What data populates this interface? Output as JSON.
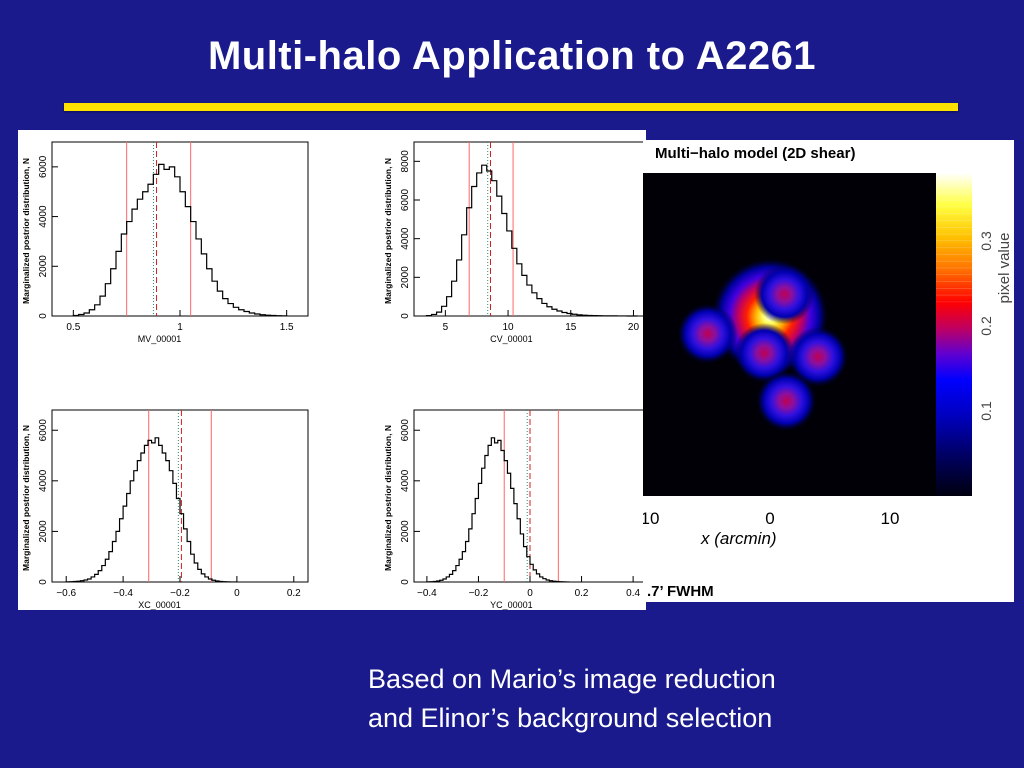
{
  "slide": {
    "title": "Multi-halo Application to A2261",
    "caption_line1": "Based on Mario’s image reduction",
    "caption_line2": "and Elinor’s  background selection",
    "colors": {
      "background": "#1a1a8c",
      "rule": "#ffe100",
      "title": "#ffffff"
    }
  },
  "chart_data": [
    {
      "type": "histogram",
      "xlabel": "MV_00001",
      "ylabel": "Marginalized postrior distribution, N",
      "xticks": [
        "0.5",
        "1",
        "1.5"
      ],
      "yticks": [
        "0",
        "2000",
        "4000",
        "6000"
      ],
      "xlim": [
        0.4,
        1.6
      ],
      "ylim": [
        0,
        7000
      ],
      "vlines_red": [
        0.75,
        1.05
      ],
      "vline_center": 0.89,
      "hist": {
        "start": 0.5,
        "step": 0.025,
        "values": [
          20,
          60,
          120,
          250,
          450,
          800,
          1300,
          1900,
          2600,
          3300,
          3800,
          4300,
          4700,
          5000,
          5300,
          5700,
          6100,
          5900,
          6000,
          5600,
          5000,
          4400,
          3800,
          3100,
          2500,
          1900,
          1400,
          1000,
          700,
          500,
          350,
          250,
          180,
          120,
          80,
          50,
          30,
          20,
          10,
          5
        ]
      }
    },
    {
      "type": "histogram",
      "xlabel": "CV_00001",
      "ylabel": "Marginalized postrior distribution, N",
      "xticks": [
        "5",
        "10",
        "15",
        "20"
      ],
      "yticks": [
        "0",
        "2000",
        "4000",
        "6000",
        "8000"
      ],
      "xlim": [
        2.5,
        21
      ],
      "ylim": [
        0,
        9000
      ],
      "vlines_red": [
        6.9,
        10.4
      ],
      "vline_center": 8.6,
      "hist": {
        "start": 3.5,
        "step": 0.4,
        "values": [
          20,
          80,
          200,
          500,
          1000,
          1800,
          2900,
          4200,
          5600,
          6700,
          7400,
          7800,
          7500,
          7000,
          6200,
          5300,
          4400,
          3500,
          2700,
          2100,
          1600,
          1200,
          900,
          650,
          480,
          350,
          260,
          180,
          130,
          90,
          60,
          40,
          30,
          20,
          15,
          10,
          8,
          5,
          3,
          2,
          1,
          1
        ]
      }
    },
    {
      "type": "histogram",
      "xlabel": "XC_00001",
      "ylabel": "Marginalized postrior distribution, N",
      "xticks": [
        "−0.6",
        "−0.4",
        "−0.2",
        "0",
        "0.2"
      ],
      "yticks": [
        "0",
        "2000",
        "4000",
        "6000"
      ],
      "xlim": [
        -0.65,
        0.25
      ],
      "ylim": [
        0,
        6800
      ],
      "vlines_red": [
        -0.31,
        -0.09
      ],
      "vline_center": -0.195,
      "hist": {
        "start": -0.6,
        "step": 0.0125,
        "values": [
          5,
          10,
          20,
          30,
          50,
          80,
          120,
          200,
          300,
          450,
          650,
          900,
          1200,
          1600,
          2000,
          2500,
          3000,
          3500,
          4000,
          4400,
          4800,
          5100,
          5400,
          5600,
          5500,
          5700,
          5400,
          5100,
          4800,
          4400,
          3900,
          3300,
          2700,
          2100,
          1600,
          1100,
          750,
          500,
          320,
          200,
          120,
          70,
          40,
          20,
          10,
          5,
          3,
          2
        ]
      }
    },
    {
      "type": "histogram",
      "xlabel": "YC_00001",
      "ylabel": "Marginalized postrior distribution, N",
      "xticks": [
        "−0.4",
        "−0.2",
        "0",
        "0.2",
        "0.4"
      ],
      "yticks": [
        "0",
        "2000",
        "4000",
        "6000"
      ],
      "xlim": [
        -0.45,
        0.45
      ],
      "ylim": [
        0,
        6800
      ],
      "vlines_red": [
        -0.1,
        0.11
      ],
      "vline_center": 0.0,
      "hist": {
        "start": -0.4,
        "step": 0.0125,
        "values": [
          5,
          10,
          20,
          40,
          70,
          120,
          200,
          300,
          450,
          650,
          900,
          1200,
          1600,
          2100,
          2700,
          3300,
          3900,
          4500,
          5000,
          5400,
          5700,
          5500,
          5600,
          5200,
          4800,
          4300,
          3700,
          3100,
          2500,
          1900,
          1400,
          1000,
          700,
          480,
          320,
          200,
          130,
          80,
          50,
          30,
          20,
          10,
          5,
          3
        ]
      }
    },
    {
      "type": "heatmap",
      "title": "Multi−halo model (2D shear)",
      "xlabel": "x  (arcmin)",
      "xticks": [
        "10",
        "0",
        "10"
      ],
      "colorbar_label": "pixel value",
      "colorbar_ticks": [
        "0.1",
        "0.2",
        "0.3"
      ],
      "note": ".7’ FWHM",
      "halos": [
        {
          "x": 0.0,
          "y": 1.2,
          "peak": 0.33
        },
        {
          "x": 1.5,
          "y": 3.5,
          "peak": 0.18
        },
        {
          "x": -6.5,
          "y": -0.6,
          "peak": 0.16
        },
        {
          "x": -0.6,
          "y": -2.6,
          "peak": 0.17
        },
        {
          "x": 5.0,
          "y": -3.0,
          "peak": 0.17
        },
        {
          "x": 1.7,
          "y": -7.6,
          "peak": 0.16
        }
      ]
    }
  ]
}
